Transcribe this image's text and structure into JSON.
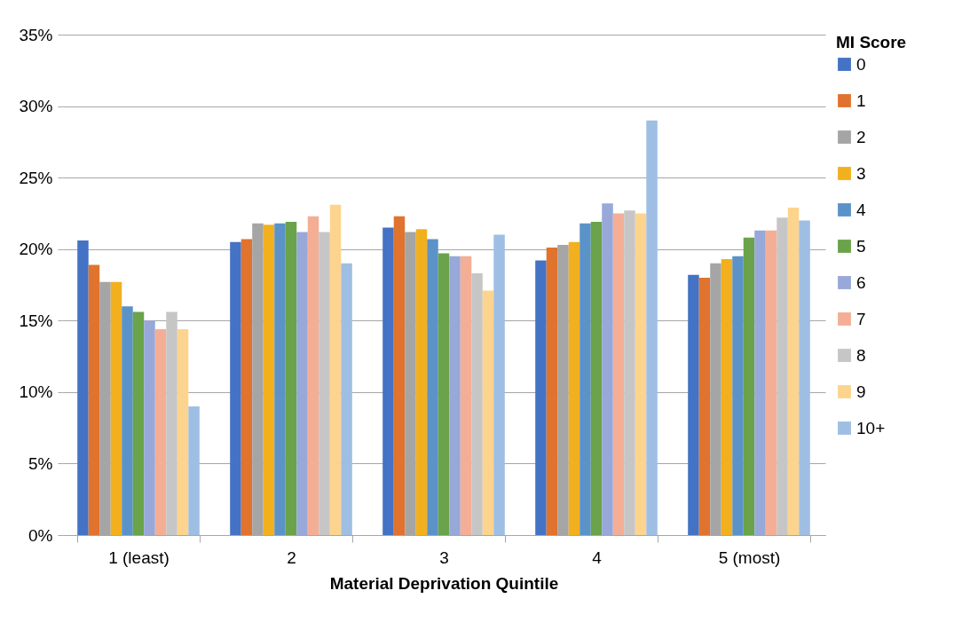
{
  "chart_data": {
    "type": "bar",
    "xlabel": "Material Deprivation Quintile",
    "legend_title": "MI Score",
    "legend": "right",
    "grid": "y",
    "categories": [
      "1 (least)",
      "2",
      "3",
      "4",
      "5 (most)"
    ],
    "ylim": [
      0,
      35
    ],
    "yticks": [
      {
        "value": 0,
        "label": "0%"
      },
      {
        "value": 5,
        "label": "5%"
      },
      {
        "value": 10,
        "label": "10%"
      },
      {
        "value": 15,
        "label": "15%"
      },
      {
        "value": 20,
        "label": "20%"
      },
      {
        "value": 25,
        "label": "25%"
      },
      {
        "value": 30,
        "label": "30%"
      },
      {
        "value": 35,
        "label": "35%"
      }
    ],
    "series": [
      {
        "name": "0",
        "color": "#4472c4",
        "values": [
          20.6,
          20.5,
          21.5,
          19.2,
          18.2
        ]
      },
      {
        "name": "1",
        "color": "#e0732e",
        "values": [
          18.9,
          20.7,
          22.3,
          20.1,
          18.0
        ]
      },
      {
        "name": "2",
        "color": "#a5a5a5",
        "values": [
          17.7,
          21.8,
          21.2,
          20.3,
          19.0
        ]
      },
      {
        "name": "3",
        "color": "#f2b01e",
        "values": [
          17.7,
          21.7,
          21.4,
          20.5,
          19.3
        ]
      },
      {
        "name": "4",
        "color": "#5b93c9",
        "values": [
          16.0,
          21.8,
          20.7,
          21.8,
          19.5
        ]
      },
      {
        "name": "5",
        "color": "#6aa34a",
        "values": [
          15.6,
          21.9,
          19.7,
          21.9,
          20.8
        ]
      },
      {
        "name": "6",
        "color": "#97a8d9",
        "values": [
          15.0,
          21.2,
          19.5,
          23.2,
          21.3
        ]
      },
      {
        "name": "7",
        "color": "#f4ae95",
        "values": [
          14.4,
          22.3,
          19.5,
          22.5,
          21.3
        ]
      },
      {
        "name": "8",
        "color": "#c6c6c6",
        "values": [
          15.6,
          21.2,
          18.3,
          22.7,
          22.2
        ]
      },
      {
        "name": "9",
        "color": "#fdd48e",
        "values": [
          14.4,
          23.1,
          17.1,
          22.5,
          22.9
        ]
      },
      {
        "name": "10+",
        "color": "#9fbee3",
        "values": [
          9.0,
          19.0,
          21.0,
          29.0,
          22.0
        ]
      }
    ]
  }
}
